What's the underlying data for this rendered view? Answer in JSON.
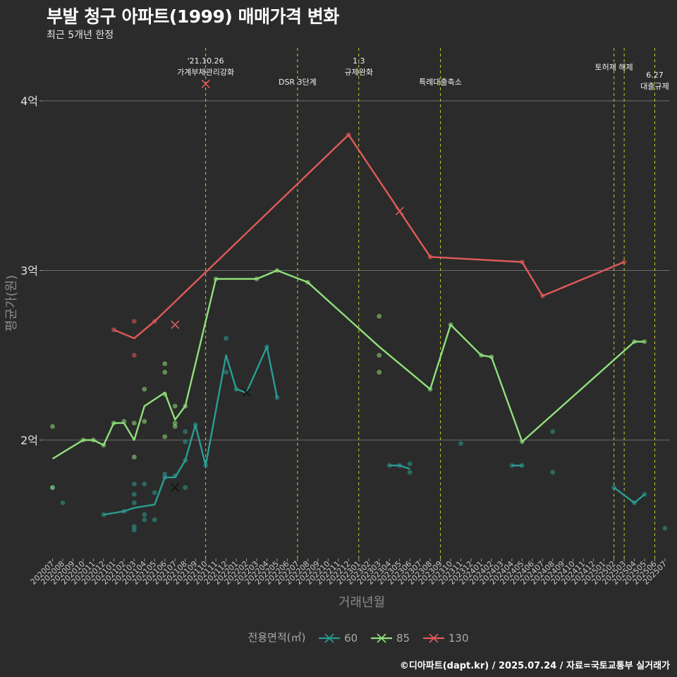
{
  "title": "부발 청구 아파트(1999) 매매가격 변화",
  "subtitle": "최근 5개년 한정",
  "caption": "©디아파트(dapt.kr) / 2025.07.24 / 자료=국토교통부 실거래가",
  "chart_data": {
    "type": "line",
    "xlabel": "거래년월",
    "ylabel": "평균가(원)",
    "categories": [
      "202007",
      "202008",
      "202009",
      "202010",
      "202011",
      "202012",
      "202101",
      "202102",
      "202103",
      "202104",
      "202105",
      "202106",
      "202107",
      "202108",
      "202109",
      "202110",
      "202111",
      "202112",
      "202201",
      "202202",
      "202203",
      "202204",
      "202205",
      "202206",
      "202207",
      "202208",
      "202209",
      "202210",
      "202211",
      "202212",
      "202301",
      "202302",
      "202303",
      "202304",
      "202305",
      "202306",
      "202307",
      "202308",
      "202309",
      "202310",
      "202311",
      "202312",
      "202401",
      "202402",
      "202403",
      "202404",
      "202405",
      "202406",
      "202407",
      "202408",
      "202409",
      "202410",
      "202411",
      "202412",
      "202501",
      "202502",
      "202503",
      "202504",
      "202505",
      "202506",
      "202507"
    ],
    "y_ticks": [
      {
        "value": 2.0,
        "label": "2억"
      },
      {
        "value": 3.0,
        "label": "3억"
      },
      {
        "value": 4.0,
        "label": "4억"
      }
    ],
    "ylim": [
      1.3,
      4.3
    ],
    "grid": true,
    "legend": {
      "title": "전용면적(㎡)",
      "position": "bottom"
    },
    "events": [
      {
        "x": "202110",
        "lines": [
          "'21.10.26",
          "가계부채관리강화"
        ]
      },
      {
        "x": "202207",
        "lines": [
          "DSR 3단계"
        ]
      },
      {
        "x": "202301",
        "lines": [
          "1.3",
          "규제완화"
        ]
      },
      {
        "x": "202309",
        "lines": [
          "특례대출축소"
        ]
      },
      {
        "x": "202502",
        "lines": [
          "토허제 해제"
        ]
      },
      {
        "x": "202503",
        "lines": []
      },
      {
        "x": "202506",
        "lines": [
          "6.27",
          "대출규제"
        ]
      }
    ],
    "series": [
      {
        "name": "60",
        "color": "#2a9d94",
        "line": [
          {
            "x": "202012",
            "y": 1.56
          },
          {
            "x": "202102",
            "y": 1.58
          },
          {
            "x": "202103",
            "y": 1.6
          },
          {
            "x": "202104",
            "y": 1.61
          },
          {
            "x": "202105",
            "y": 1.62
          },
          {
            "x": "202106",
            "y": 1.78
          },
          {
            "x": "202107",
            "y": 1.78
          },
          {
            "x": "202108",
            "y": 1.88
          },
          {
            "x": "202109",
            "y": 2.09
          },
          {
            "x": "202110",
            "y": 1.85
          },
          {
            "x": "202112",
            "y": 2.5
          },
          {
            "x": "202201",
            "y": 2.3
          },
          {
            "x": "202202",
            "y": 2.28
          },
          {
            "x": "202204",
            "y": 2.55
          },
          {
            "x": "202205",
            "y": 2.25
          }
        ],
        "segments": [
          [
            {
              "x": "202304",
              "y": 1.85
            },
            {
              "x": "202305",
              "y": 1.85
            },
            {
              "x": "202306",
              "y": 1.83
            }
          ],
          [
            {
              "x": "202404",
              "y": 1.85
            },
            {
              "x": "202405",
              "y": 1.85
            }
          ],
          [
            {
              "x": "202502",
              "y": 1.72
            },
            {
              "x": "202504",
              "y": 1.63
            },
            {
              "x": "202505",
              "y": 1.68
            }
          ]
        ],
        "points": [
          {
            "x": "202007",
            "y": 1.72
          },
          {
            "x": "202008",
            "y": 1.63
          },
          {
            "x": "202012",
            "y": 1.56
          },
          {
            "x": "202102",
            "y": 1.58
          },
          {
            "x": "202103",
            "y": 1.74
          },
          {
            "x": "202103",
            "y": 1.68
          },
          {
            "x": "202103",
            "y": 1.63
          },
          {
            "x": "202103",
            "y": 1.49
          },
          {
            "x": "202103",
            "y": 1.47
          },
          {
            "x": "202104",
            "y": 1.74
          },
          {
            "x": "202104",
            "y": 1.56
          },
          {
            "x": "202104",
            "y": 1.53
          },
          {
            "x": "202105",
            "y": 1.69
          },
          {
            "x": "202105",
            "y": 1.53
          },
          {
            "x": "202106",
            "y": 1.8
          },
          {
            "x": "202106",
            "y": 1.78
          },
          {
            "x": "202107",
            "y": 1.79
          },
          {
            "x": "202108",
            "y": 2.05
          },
          {
            "x": "202108",
            "y": 1.99
          },
          {
            "x": "202108",
            "y": 1.88
          },
          {
            "x": "202108",
            "y": 1.72
          },
          {
            "x": "202109",
            "y": 2.09
          },
          {
            "x": "202110",
            "y": 1.85
          },
          {
            "x": "202112",
            "y": 2.6
          },
          {
            "x": "202112",
            "y": 2.4
          },
          {
            "x": "202201",
            "y": 2.3
          },
          {
            "x": "202204",
            "y": 2.55
          },
          {
            "x": "202205",
            "y": 2.25
          },
          {
            "x": "202304",
            "y": 1.85
          },
          {
            "x": "202305",
            "y": 1.85
          },
          {
            "x": "202306",
            "y": 1.86
          },
          {
            "x": "202306",
            "y": 1.81
          },
          {
            "x": "202311",
            "y": 1.98
          },
          {
            "x": "202404",
            "y": 1.85
          },
          {
            "x": "202405",
            "y": 1.85
          },
          {
            "x": "202408",
            "y": 1.81
          },
          {
            "x": "202408",
            "y": 2.05
          },
          {
            "x": "202502",
            "y": 1.72
          },
          {
            "x": "202504",
            "y": 1.63
          },
          {
            "x": "202505",
            "y": 1.68
          },
          {
            "x": "202507",
            "y": 1.48
          }
        ],
        "x_marks": [
          {
            "x": "202107",
            "y": 1.72
          },
          {
            "x": "202202",
            "y": 2.28
          }
        ]
      },
      {
        "name": "85",
        "color": "#8fe07a",
        "line": [
          {
            "x": "202007",
            "y": 1.89
          },
          {
            "x": "202010",
            "y": 2.0
          },
          {
            "x": "202011",
            "y": 2.0
          },
          {
            "x": "202012",
            "y": 1.97
          },
          {
            "x": "202101",
            "y": 2.1
          },
          {
            "x": "202102",
            "y": 2.1
          },
          {
            "x": "202103",
            "y": 2.0
          },
          {
            "x": "202104",
            "y": 2.2
          },
          {
            "x": "202106",
            "y": 2.28
          },
          {
            "x": "202107",
            "y": 2.12
          },
          {
            "x": "202108",
            "y": 2.2
          },
          {
            "x": "202111",
            "y": 2.95
          },
          {
            "x": "202203",
            "y": 2.95
          },
          {
            "x": "202205",
            "y": 3.0
          },
          {
            "x": "202208",
            "y": 2.93
          },
          {
            "x": "202303",
            "y": 2.55
          },
          {
            "x": "202308",
            "y": 2.3
          },
          {
            "x": "202310",
            "y": 2.68
          },
          {
            "x": "202401",
            "y": 2.5
          },
          {
            "x": "202402",
            "y": 2.49
          },
          {
            "x": "202405",
            "y": 1.99
          },
          {
            "x": "202504",
            "y": 2.58
          },
          {
            "x": "202505",
            "y": 2.58
          }
        ],
        "points": [
          {
            "x": "202007",
            "y": 2.08
          },
          {
            "x": "202007",
            "y": 1.72
          },
          {
            "x": "202010",
            "y": 2.0
          },
          {
            "x": "202011",
            "y": 2.0
          },
          {
            "x": "202012",
            "y": 1.97
          },
          {
            "x": "202101",
            "y": 2.1
          },
          {
            "x": "202102",
            "y": 2.11
          },
          {
            "x": "202103",
            "y": 2.1
          },
          {
            "x": "202103",
            "y": 1.9
          },
          {
            "x": "202104",
            "y": 2.3
          },
          {
            "x": "202104",
            "y": 2.11
          },
          {
            "x": "202106",
            "y": 2.45
          },
          {
            "x": "202106",
            "y": 2.4
          },
          {
            "x": "202106",
            "y": 2.27
          },
          {
            "x": "202106",
            "y": 2.02
          },
          {
            "x": "202107",
            "y": 2.2
          },
          {
            "x": "202107",
            "y": 2.1
          },
          {
            "x": "202107",
            "y": 2.08
          },
          {
            "x": "202108",
            "y": 2.2
          },
          {
            "x": "202111",
            "y": 2.95
          },
          {
            "x": "202203",
            "y": 2.95
          },
          {
            "x": "202205",
            "y": 3.0
          },
          {
            "x": "202208",
            "y": 2.93
          },
          {
            "x": "202303",
            "y": 2.73
          },
          {
            "x": "202303",
            "y": 2.5
          },
          {
            "x": "202303",
            "y": 2.4
          },
          {
            "x": "202308",
            "y": 2.3
          },
          {
            "x": "202310",
            "y": 2.68
          },
          {
            "x": "202401",
            "y": 2.5
          },
          {
            "x": "202402",
            "y": 2.49
          },
          {
            "x": "202405",
            "y": 1.99
          },
          {
            "x": "202504",
            "y": 2.58
          },
          {
            "x": "202505",
            "y": 2.58
          }
        ],
        "x_marks": []
      },
      {
        "name": "130",
        "color": "#e05a5a",
        "line": [
          {
            "x": "202101",
            "y": 2.65
          },
          {
            "x": "202103",
            "y": 2.6
          },
          {
            "x": "202105",
            "y": 2.7
          },
          {
            "x": "202212",
            "y": 3.8
          },
          {
            "x": "202305",
            "y": 3.35
          },
          {
            "x": "202308",
            "y": 3.08
          },
          {
            "x": "202405",
            "y": 3.05
          },
          {
            "x": "202407",
            "y": 2.85
          },
          {
            "x": "202503",
            "y": 3.05
          }
        ],
        "points": [
          {
            "x": "202101",
            "y": 2.65
          },
          {
            "x": "202103",
            "y": 2.7
          },
          {
            "x": "202103",
            "y": 2.5
          },
          {
            "x": "202105",
            "y": 2.7
          },
          {
            "x": "202212",
            "y": 3.8
          },
          {
            "x": "202308",
            "y": 3.08
          },
          {
            "x": "202405",
            "y": 3.05
          },
          {
            "x": "202407",
            "y": 2.85
          },
          {
            "x": "202503",
            "y": 3.05
          }
        ],
        "x_marks": [
          {
            "x": "202107",
            "y": 2.68
          },
          {
            "x": "202110",
            "y": 4.1
          },
          {
            "x": "202305",
            "y": 3.35
          }
        ]
      }
    ]
  }
}
